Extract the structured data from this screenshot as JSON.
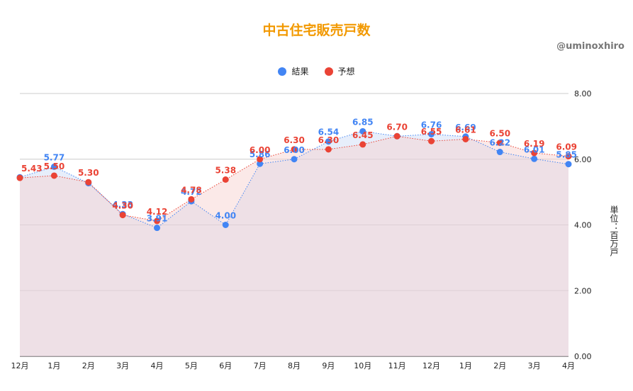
{
  "credit": "@uminoxhiro",
  "colors": {
    "result": "#4285f4",
    "forecast": "#ea4335",
    "title": "#f29900",
    "grid": "#cccccc",
    "area_result": "#c9d9f7",
    "area_forecast": "#f6cfcb"
  },
  "chart_data": {
    "type": "line",
    "title": "中古住宅販売戸数",
    "ylabel": "単位：百万戸",
    "xlabel": "",
    "ylim": [
      0,
      8
    ],
    "yticks": [
      "0.00",
      "2.00",
      "4.00",
      "6.00",
      "8.00"
    ],
    "categories": [
      "12月",
      "1月",
      "2月",
      "3月",
      "4月",
      "5月",
      "6月",
      "7月",
      "8月",
      "9月",
      "10月",
      "11月",
      "12月",
      "1月",
      "2月",
      "3月",
      "4月"
    ],
    "series": [
      {
        "name": "結果",
        "color": "#4285f4",
        "values": [
          5.45,
          5.77,
          5.27,
          4.33,
          3.91,
          4.72,
          4.0,
          5.86,
          6.0,
          6.54,
          6.85,
          6.7,
          6.76,
          6.69,
          6.22,
          6.01,
          5.85
        ],
        "labels": [
          "",
          "5.77",
          "",
          "4.33",
          "3.91",
          "4.72",
          "4.00",
          "5.86",
          "6.00",
          "6.54",
          "6.85",
          "",
          "6.76",
          "6.69",
          "6.22",
          "6.01",
          "5.85"
        ]
      },
      {
        "name": "予想",
        "color": "#ea4335",
        "values": [
          5.43,
          5.5,
          5.3,
          4.3,
          4.12,
          4.78,
          5.38,
          6.0,
          6.3,
          6.3,
          6.45,
          6.7,
          6.55,
          6.61,
          6.5,
          6.19,
          6.09
        ],
        "labels": [
          "5.43",
          "5.50",
          "5.30",
          "4.30",
          "4.12",
          "4.78",
          "5.38",
          "6.00",
          "6.30",
          "6.30",
          "6.45",
          "6.70",
          "6.55",
          "6.61",
          "6.50",
          "6.19",
          "6.09"
        ]
      }
    ],
    "grid": true,
    "legend_position": "top"
  }
}
